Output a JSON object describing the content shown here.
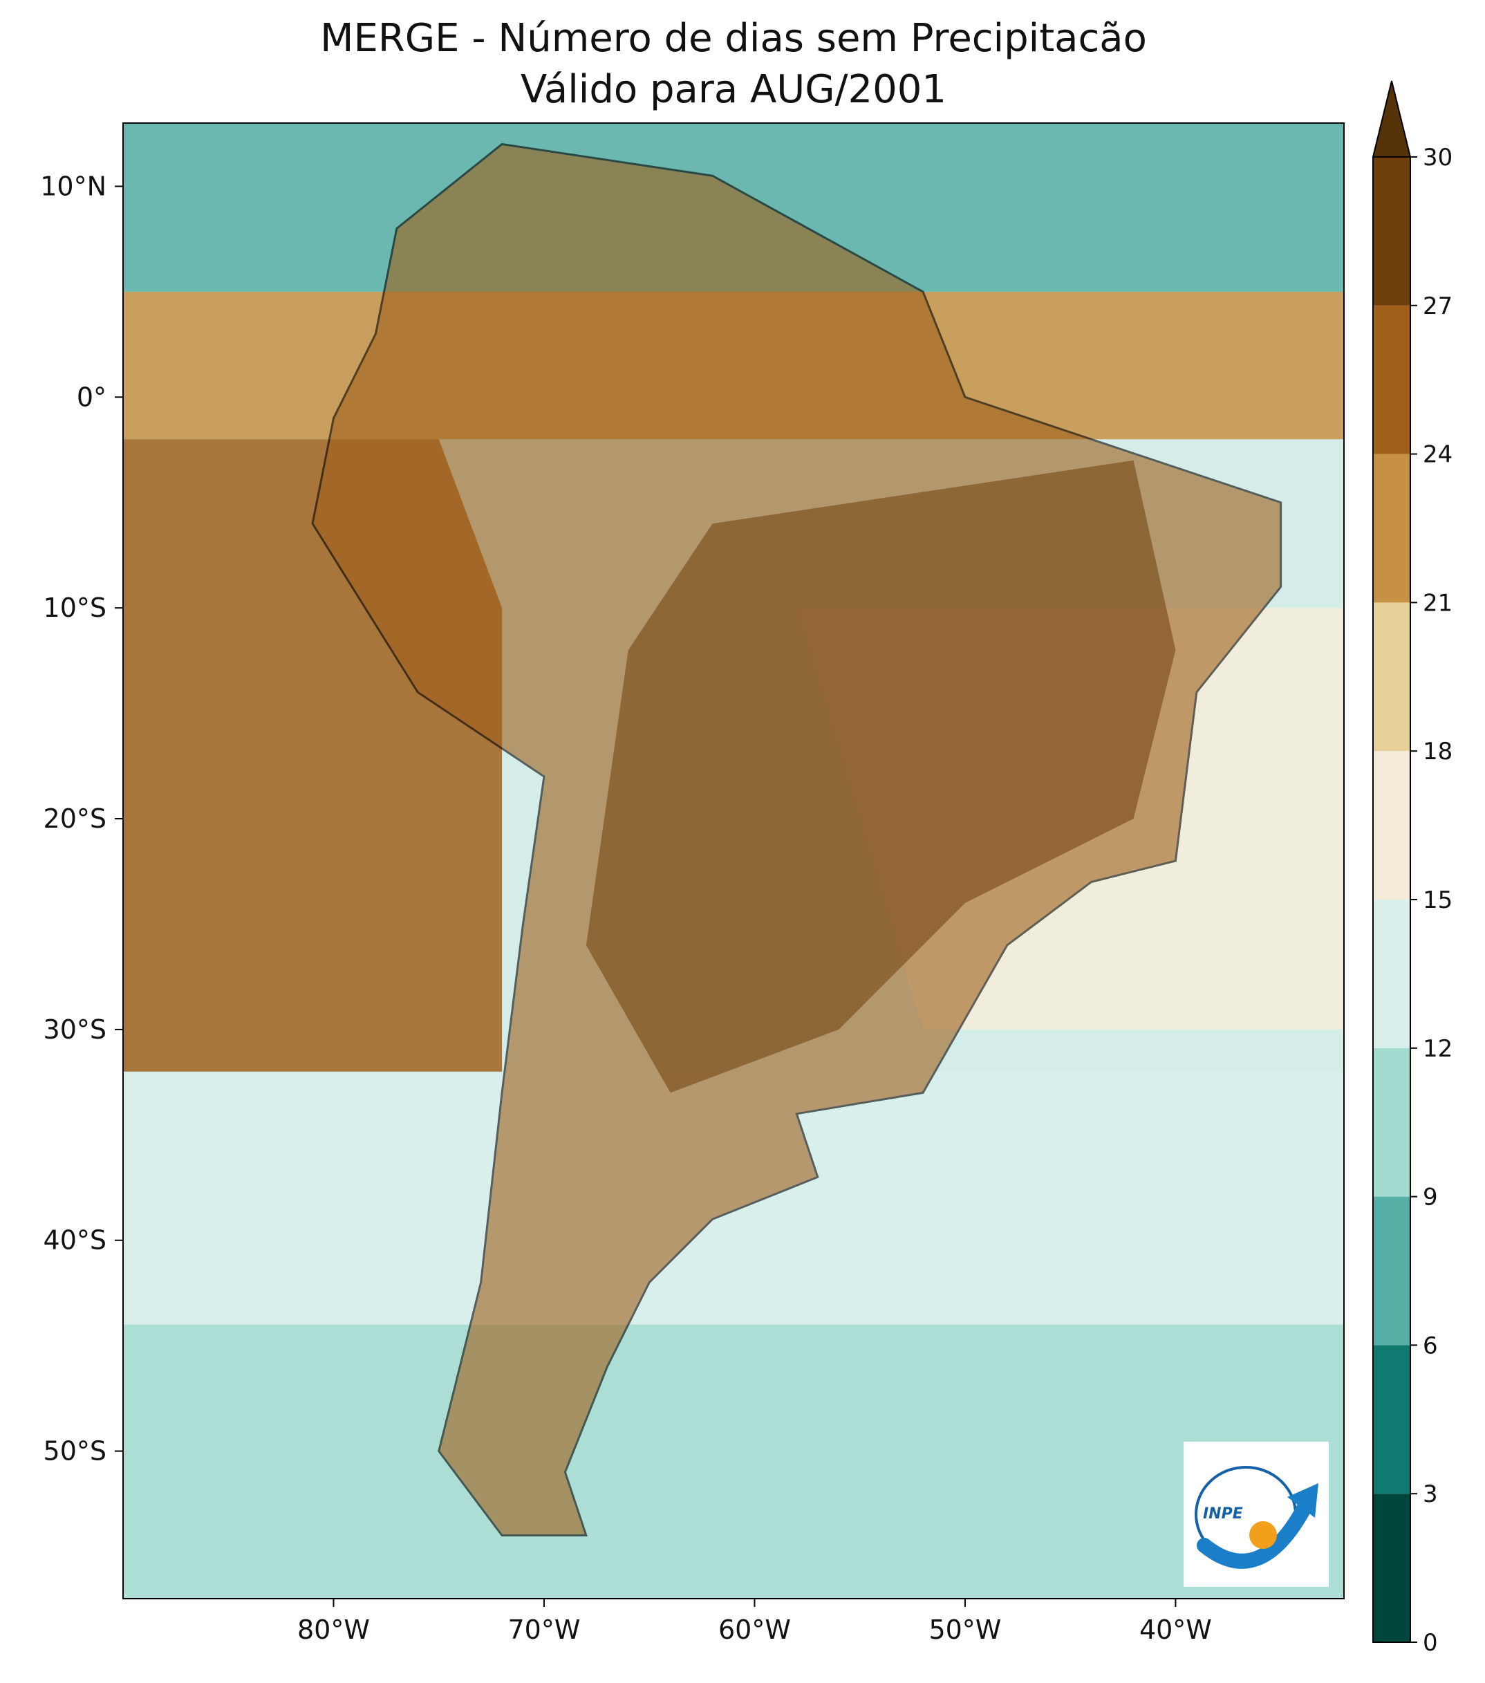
{
  "title": {
    "line1": "MERGE - Número de dias sem Precipitacão",
    "line2": "Válido para AUG/2001"
  },
  "map": {
    "lon_range": [
      -90,
      -32
    ],
    "lat_range": [
      -57,
      13
    ],
    "x_ticks": [
      {
        "lon": -80,
        "label": "80°W"
      },
      {
        "lon": -70,
        "label": "70°W"
      },
      {
        "lon": -60,
        "label": "60°W"
      },
      {
        "lon": -50,
        "label": "50°W"
      },
      {
        "lon": -40,
        "label": "40°W"
      }
    ],
    "y_ticks": [
      {
        "lat": 10,
        "label": "10°N"
      },
      {
        "lat": 0,
        "label": "0°"
      },
      {
        "lat": -10,
        "label": "10°S"
      },
      {
        "lat": -20,
        "label": "20°S"
      },
      {
        "lat": -30,
        "label": "30°S"
      },
      {
        "lat": -40,
        "label": "40°S"
      },
      {
        "lat": -50,
        "label": "50°S"
      }
    ],
    "ocean_color": "#d4ede9",
    "border_color": "#000000"
  },
  "colorbar": {
    "extend": "max",
    "levels": [
      {
        "value": 0,
        "label": "0"
      },
      {
        "value": 3,
        "label": "3"
      },
      {
        "value": 6,
        "label": "6"
      },
      {
        "value": 9,
        "label": "9"
      },
      {
        "value": 12,
        "label": "12"
      },
      {
        "value": 15,
        "label": "15"
      },
      {
        "value": 18,
        "label": "18"
      },
      {
        "value": 21,
        "label": "21"
      },
      {
        "value": 24,
        "label": "24"
      },
      {
        "value": 27,
        "label": "27"
      },
      {
        "value": 30,
        "label": "30"
      }
    ],
    "colors": [
      "#01463d",
      "#117a70",
      "#57aea4",
      "#a4dbd1",
      "#d8efec",
      "#f4ecd9",
      "#e8d099",
      "#c79144",
      "#a0601c",
      "#6f3f0b"
    ],
    "extend_color": "#553208"
  },
  "logo": {
    "text": "INPE"
  }
}
